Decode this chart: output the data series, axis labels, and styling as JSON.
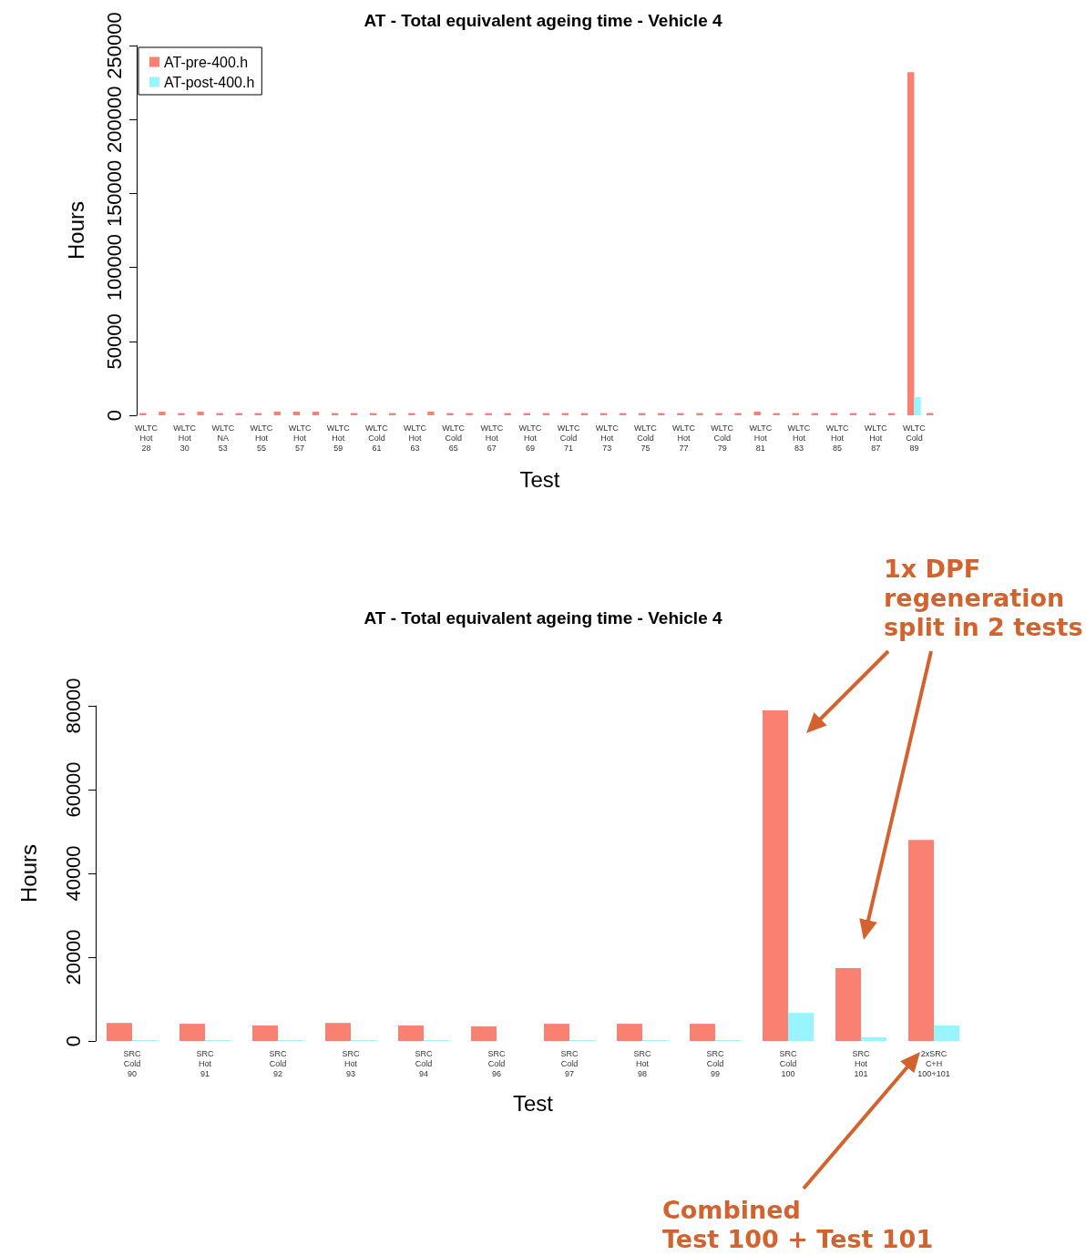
{
  "chart_data": [
    {
      "type": "bar",
      "title": "AT - Total equivalent ageing time - Vehicle 4",
      "xlabel": "Test",
      "ylabel": "Hours",
      "categories": [
        "WLTC\nHot\n28",
        null,
        "WLTC\nHot\n30",
        null,
        "WLTC\nNA\n53",
        null,
        "WLTC\nHot\n55",
        null,
        "WLTC\nHot\n57",
        null,
        "WLTC\nHot\n59",
        null,
        "WLTC\nCold\n61",
        null,
        "WLTC\nHot\n63",
        null,
        "WLTC\nCold\n65",
        null,
        "WLTC\nHot\n67",
        null,
        "WLTC\nHot\n69",
        null,
        "WLTC\nCold\n71",
        null,
        "WLTC\nHot\n73",
        null,
        "WLTC\nCold\n75",
        null,
        "WLTC\nHot\n77",
        null,
        "WLTC\nCold\n79",
        null,
        "WLTC\nHot\n81",
        null,
        "WLTC\nHot\n83",
        null,
        "WLTC\nHot\n85",
        null,
        "WLTC\nHot\n87",
        null,
        "WLTC\nCold\n89",
        null
      ],
      "series": [
        {
          "name": "AT-pre-400.h",
          "color": "#fa8072",
          "values": [
            1500,
            2500,
            1500,
            2500,
            1500,
            1500,
            1500,
            2500,
            2500,
            2500,
            1500,
            1500,
            1500,
            1500,
            1500,
            2500,
            1500,
            1500,
            1500,
            1500,
            1500,
            1500,
            1500,
            1500,
            1500,
            1500,
            1500,
            1500,
            1500,
            1500,
            1500,
            1500,
            2500,
            1500,
            1500,
            1500,
            1500,
            1500,
            1500,
            1500,
            232000,
            1500
          ]
        },
        {
          "name": "AT-post-400.h",
          "color": "#98f5ff",
          "values": [
            0,
            0,
            0,
            0,
            0,
            0,
            0,
            0,
            0,
            0,
            0,
            0,
            0,
            0,
            0,
            0,
            0,
            0,
            0,
            0,
            0,
            0,
            0,
            0,
            0,
            0,
            0,
            0,
            0,
            0,
            0,
            0,
            0,
            0,
            0,
            0,
            0,
            0,
            0,
            0,
            12300,
            0
          ]
        }
      ],
      "ylim": [
        0,
        250000
      ],
      "yticks": [
        0,
        50000,
        100000,
        150000,
        200000,
        250000
      ],
      "grid": false,
      "legend": "top left"
    },
    {
      "type": "bar",
      "title": "AT - Total equivalent ageing time - Vehicle 4",
      "xlabel": "Test",
      "ylabel": "Hours",
      "categories": [
        "SRC\nCold\n90",
        "SRC\nHot\n91",
        "SRC\nCold\n92",
        "SRC\nHot\n93",
        "SRC\nCold\n94",
        "SRC\nCold\n96",
        "SRC\nCold\n97",
        "SRC\nHot\n98",
        "SRC\nCold\n99",
        "SRC\nCold\n100",
        "SRC\nHot\n101",
        "2xSRC\nC+H\n100+101"
      ],
      "series": [
        {
          "color": "#fa8072",
          "values": [
            4300,
            4100,
            3700,
            4300,
            3700,
            3500,
            4100,
            4100,
            4100,
            78900,
            17400,
            48000
          ]
        },
        {
          "color": "#98f5ff",
          "values": [
            200,
            200,
            200,
            200,
            200,
            0,
            200,
            200,
            200,
            6700,
            900,
            3700
          ]
        }
      ],
      "ylim": [
        0,
        80000
      ],
      "yticks": [
        0,
        20000,
        40000,
        60000,
        80000
      ],
      "grid": false,
      "legend": false,
      "annotations": [
        "1x DPF\nregeneration\nsplit in 2 tests",
        "Combined\nTest 100 + Test 101"
      ]
    }
  ]
}
